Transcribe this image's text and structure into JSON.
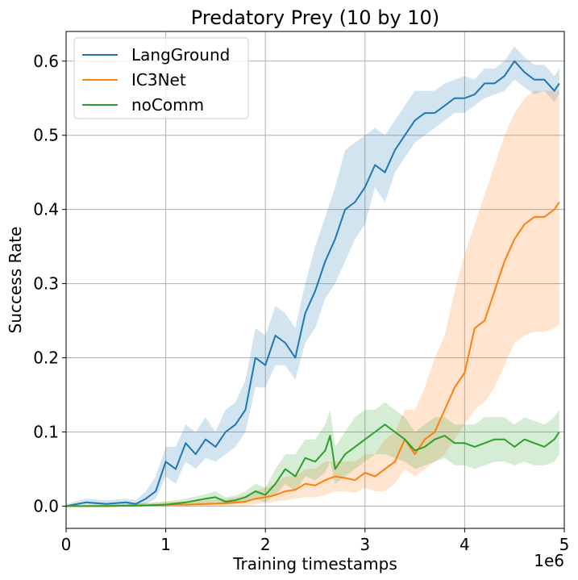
{
  "chart_data": {
    "type": "line",
    "title": "Predatory Prey (10 by 10)",
    "xlabel": "Training timestamps",
    "ylabel": "Success Rate",
    "x_offset_label": "1e6",
    "xlim": [
      0,
      5
    ],
    "ylim": [
      -0.03,
      0.64
    ],
    "grid": true,
    "legend_position": "top-left",
    "x_ticks": [
      0,
      1,
      2,
      3,
      4,
      5
    ],
    "x_tick_labels": [
      "0",
      "1",
      "2",
      "3",
      "4",
      "5"
    ],
    "y_ticks": [
      0.0,
      0.1,
      0.2,
      0.3,
      0.4,
      0.5,
      0.6
    ],
    "y_tick_labels": [
      "0.0",
      "0.1",
      "0.2",
      "0.3",
      "0.4",
      "0.5",
      "0.6"
    ],
    "series": [
      {
        "name": "LangGround",
        "color": "#1f77b4",
        "x": [
          0,
          0.2,
          0.4,
          0.6,
          0.7,
          0.8,
          0.9,
          1.0,
          1.1,
          1.2,
          1.3,
          1.4,
          1.5,
          1.6,
          1.7,
          1.8,
          1.9,
          2.0,
          2.1,
          2.2,
          2.3,
          2.4,
          2.5,
          2.6,
          2.7,
          2.8,
          2.9,
          3.0,
          3.1,
          3.2,
          3.3,
          3.4,
          3.5,
          3.6,
          3.7,
          3.8,
          3.9,
          4.0,
          4.1,
          4.2,
          4.3,
          4.4,
          4.5,
          4.6,
          4.7,
          4.8,
          4.9,
          4.95
        ],
        "mean": [
          0.0,
          0.005,
          0.003,
          0.005,
          0.003,
          0.01,
          0.02,
          0.06,
          0.05,
          0.085,
          0.07,
          0.09,
          0.08,
          0.1,
          0.11,
          0.13,
          0.2,
          0.19,
          0.23,
          0.22,
          0.2,
          0.26,
          0.29,
          0.33,
          0.36,
          0.4,
          0.41,
          0.43,
          0.46,
          0.45,
          0.48,
          0.5,
          0.52,
          0.53,
          0.53,
          0.54,
          0.55,
          0.55,
          0.555,
          0.57,
          0.57,
          0.58,
          0.6,
          0.585,
          0.575,
          0.575,
          0.56,
          0.57
        ],
        "lower": [
          0.0,
          0.0,
          0.0,
          0.0,
          0.0,
          0.003,
          0.01,
          0.04,
          0.03,
          0.06,
          0.05,
          0.065,
          0.06,
          0.07,
          0.08,
          0.1,
          0.16,
          0.16,
          0.19,
          0.19,
          0.17,
          0.22,
          0.24,
          0.28,
          0.3,
          0.33,
          0.36,
          0.38,
          0.43,
          0.41,
          0.45,
          0.47,
          0.49,
          0.5,
          0.51,
          0.52,
          0.53,
          0.53,
          0.54,
          0.55,
          0.555,
          0.56,
          0.575,
          0.565,
          0.555,
          0.56,
          0.545,
          0.555
        ],
        "upper": [
          0.003,
          0.01,
          0.008,
          0.01,
          0.008,
          0.02,
          0.04,
          0.08,
          0.08,
          0.11,
          0.1,
          0.12,
          0.1,
          0.13,
          0.14,
          0.17,
          0.24,
          0.23,
          0.27,
          0.26,
          0.24,
          0.3,
          0.35,
          0.39,
          0.43,
          0.48,
          0.49,
          0.5,
          0.51,
          0.5,
          0.52,
          0.54,
          0.56,
          0.56,
          0.56,
          0.57,
          0.575,
          0.58,
          0.575,
          0.59,
          0.59,
          0.6,
          0.62,
          0.605,
          0.595,
          0.595,
          0.58,
          0.59
        ]
      },
      {
        "name": "IC3Net",
        "color": "#ff7f0e",
        "x": [
          0,
          0.4,
          0.8,
          1.0,
          1.2,
          1.4,
          1.6,
          1.8,
          1.9,
          2.0,
          2.1,
          2.2,
          2.3,
          2.4,
          2.5,
          2.6,
          2.7,
          2.8,
          2.9,
          3.0,
          3.1,
          3.2,
          3.3,
          3.4,
          3.5,
          3.6,
          3.7,
          3.8,
          3.9,
          4.0,
          4.1,
          4.2,
          4.3,
          4.4,
          4.5,
          4.6,
          4.7,
          4.8,
          4.9,
          4.95
        ],
        "mean": [
          0.0,
          0.0,
          0.001,
          0.002,
          0.002,
          0.003,
          0.004,
          0.006,
          0.01,
          0.012,
          0.015,
          0.02,
          0.022,
          0.03,
          0.028,
          0.035,
          0.04,
          0.038,
          0.035,
          0.045,
          0.04,
          0.05,
          0.06,
          0.09,
          0.07,
          0.09,
          0.1,
          0.13,
          0.16,
          0.18,
          0.24,
          0.25,
          0.29,
          0.33,
          0.36,
          0.38,
          0.39,
          0.39,
          0.4,
          0.41
        ],
        "lower": [
          0.0,
          0.0,
          0.0,
          0.0,
          0.0,
          0.0,
          0.0,
          0.0,
          0.003,
          0.004,
          0.006,
          0.008,
          0.01,
          0.012,
          0.012,
          0.015,
          0.02,
          0.02,
          0.018,
          0.025,
          0.02,
          0.02,
          0.03,
          0.05,
          0.04,
          0.05,
          0.06,
          0.07,
          0.09,
          0.11,
          0.13,
          0.14,
          0.16,
          0.19,
          0.22,
          0.23,
          0.235,
          0.235,
          0.24,
          0.245
        ],
        "upper": [
          0.0,
          0.002,
          0.004,
          0.006,
          0.006,
          0.008,
          0.01,
          0.014,
          0.02,
          0.025,
          0.03,
          0.04,
          0.04,
          0.05,
          0.05,
          0.06,
          0.06,
          0.06,
          0.06,
          0.07,
          0.07,
          0.09,
          0.1,
          0.13,
          0.13,
          0.16,
          0.2,
          0.23,
          0.29,
          0.34,
          0.38,
          0.42,
          0.46,
          0.5,
          0.53,
          0.55,
          0.56,
          0.56,
          0.56,
          0.56
        ]
      },
      {
        "name": "noComm",
        "color": "#2ca02c",
        "x": [
          0,
          0.4,
          0.8,
          1.0,
          1.2,
          1.4,
          1.5,
          1.6,
          1.7,
          1.8,
          1.9,
          2.0,
          2.1,
          2.2,
          2.3,
          2.4,
          2.5,
          2.6,
          2.65,
          2.7,
          2.8,
          2.9,
          3.0,
          3.1,
          3.2,
          3.3,
          3.4,
          3.5,
          3.6,
          3.7,
          3.8,
          3.9,
          4.0,
          4.1,
          4.2,
          4.3,
          4.4,
          4.5,
          4.6,
          4.7,
          4.8,
          4.9,
          4.95
        ],
        "mean": [
          0.0,
          0.0,
          0.001,
          0.002,
          0.005,
          0.01,
          0.012,
          0.006,
          0.008,
          0.012,
          0.02,
          0.015,
          0.03,
          0.05,
          0.04,
          0.065,
          0.06,
          0.075,
          0.095,
          0.05,
          0.07,
          0.08,
          0.09,
          0.1,
          0.11,
          0.1,
          0.09,
          0.075,
          0.08,
          0.09,
          0.095,
          0.085,
          0.085,
          0.08,
          0.085,
          0.09,
          0.09,
          0.08,
          0.09,
          0.085,
          0.08,
          0.09,
          0.1
        ],
        "lower": [
          0.0,
          0.0,
          0.0,
          0.0,
          0.002,
          0.004,
          0.005,
          0.002,
          0.003,
          0.005,
          0.01,
          0.005,
          0.015,
          0.03,
          0.02,
          0.04,
          0.035,
          0.045,
          0.06,
          0.03,
          0.04,
          0.05,
          0.06,
          0.07,
          0.07,
          0.065,
          0.06,
          0.05,
          0.055,
          0.06,
          0.065,
          0.055,
          0.055,
          0.05,
          0.055,
          0.06,
          0.06,
          0.055,
          0.06,
          0.055,
          0.055,
          0.06,
          0.07
        ],
        "upper": [
          0.0,
          0.002,
          0.004,
          0.006,
          0.01,
          0.016,
          0.02,
          0.012,
          0.014,
          0.02,
          0.03,
          0.025,
          0.05,
          0.07,
          0.07,
          0.09,
          0.09,
          0.11,
          0.13,
          0.08,
          0.1,
          0.12,
          0.13,
          0.13,
          0.14,
          0.13,
          0.12,
          0.1,
          0.11,
          0.12,
          0.12,
          0.11,
          0.11,
          0.11,
          0.12,
          0.12,
          0.12,
          0.11,
          0.12,
          0.115,
          0.11,
          0.12,
          0.13
        ]
      }
    ]
  }
}
